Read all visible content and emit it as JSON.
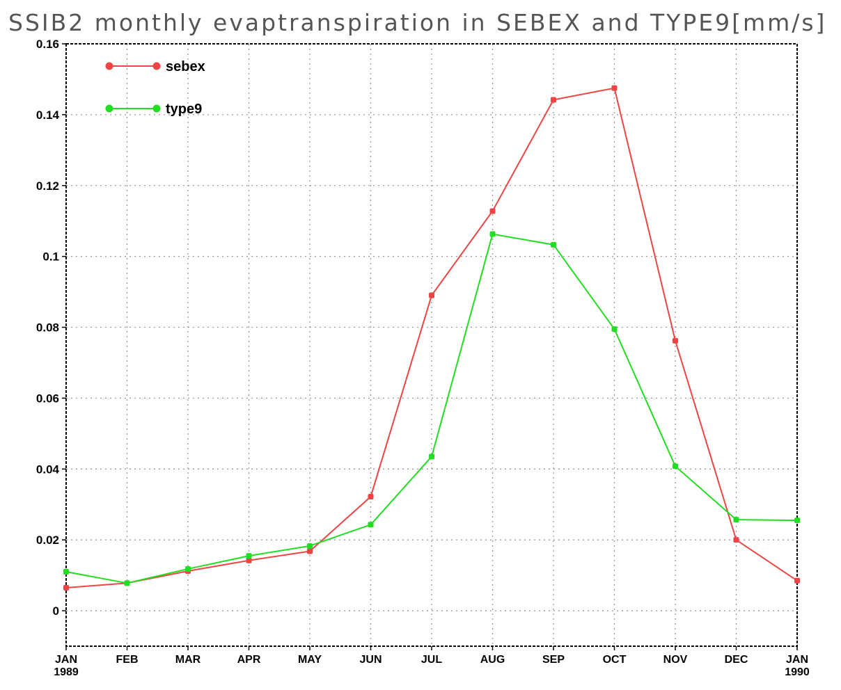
{
  "chart_data": {
    "type": "line",
    "title": "SSIB2 monthly evaptranspiration in SEBEX and TYPE9[mm/s]",
    "xlabel": "",
    "ylabel": "",
    "categories": [
      "JAN",
      "FEB",
      "MAR",
      "APR",
      "MAY",
      "JUN",
      "JUL",
      "AUG",
      "SEP",
      "OCT",
      "NOV",
      "DEC",
      "JAN"
    ],
    "category_sublabels": [
      "1989",
      "",
      "",
      "",
      "",
      "",
      "",
      "",
      "",
      "",
      "",
      "",
      "1990"
    ],
    "ylim": [
      -0.01,
      0.16
    ],
    "yticks": [
      0,
      0.02,
      0.04,
      0.06,
      0.08,
      0.1,
      0.12,
      0.14,
      0.16
    ],
    "ytick_labels": [
      "0",
      "0.02",
      "0.04",
      "0.06",
      "0.08",
      "0.1",
      "0.12",
      "0.14",
      "0.16"
    ],
    "grid": true,
    "legend_position": "top-left",
    "series": [
      {
        "name": "sebex",
        "color": "#ee4444",
        "values": [
          0.0065,
          0.0078,
          0.0112,
          0.0142,
          0.0168,
          0.0322,
          0.089,
          0.1128,
          0.1442,
          0.1475,
          0.0762,
          0.02,
          0.0085
        ]
      },
      {
        "name": "type9",
        "color": "#22dd22",
        "values": [
          0.011,
          0.0078,
          0.0118,
          0.0155,
          0.0183,
          0.0243,
          0.0435,
          0.1063,
          0.1033,
          0.0795,
          0.0408,
          0.0257,
          0.0255
        ]
      }
    ]
  }
}
